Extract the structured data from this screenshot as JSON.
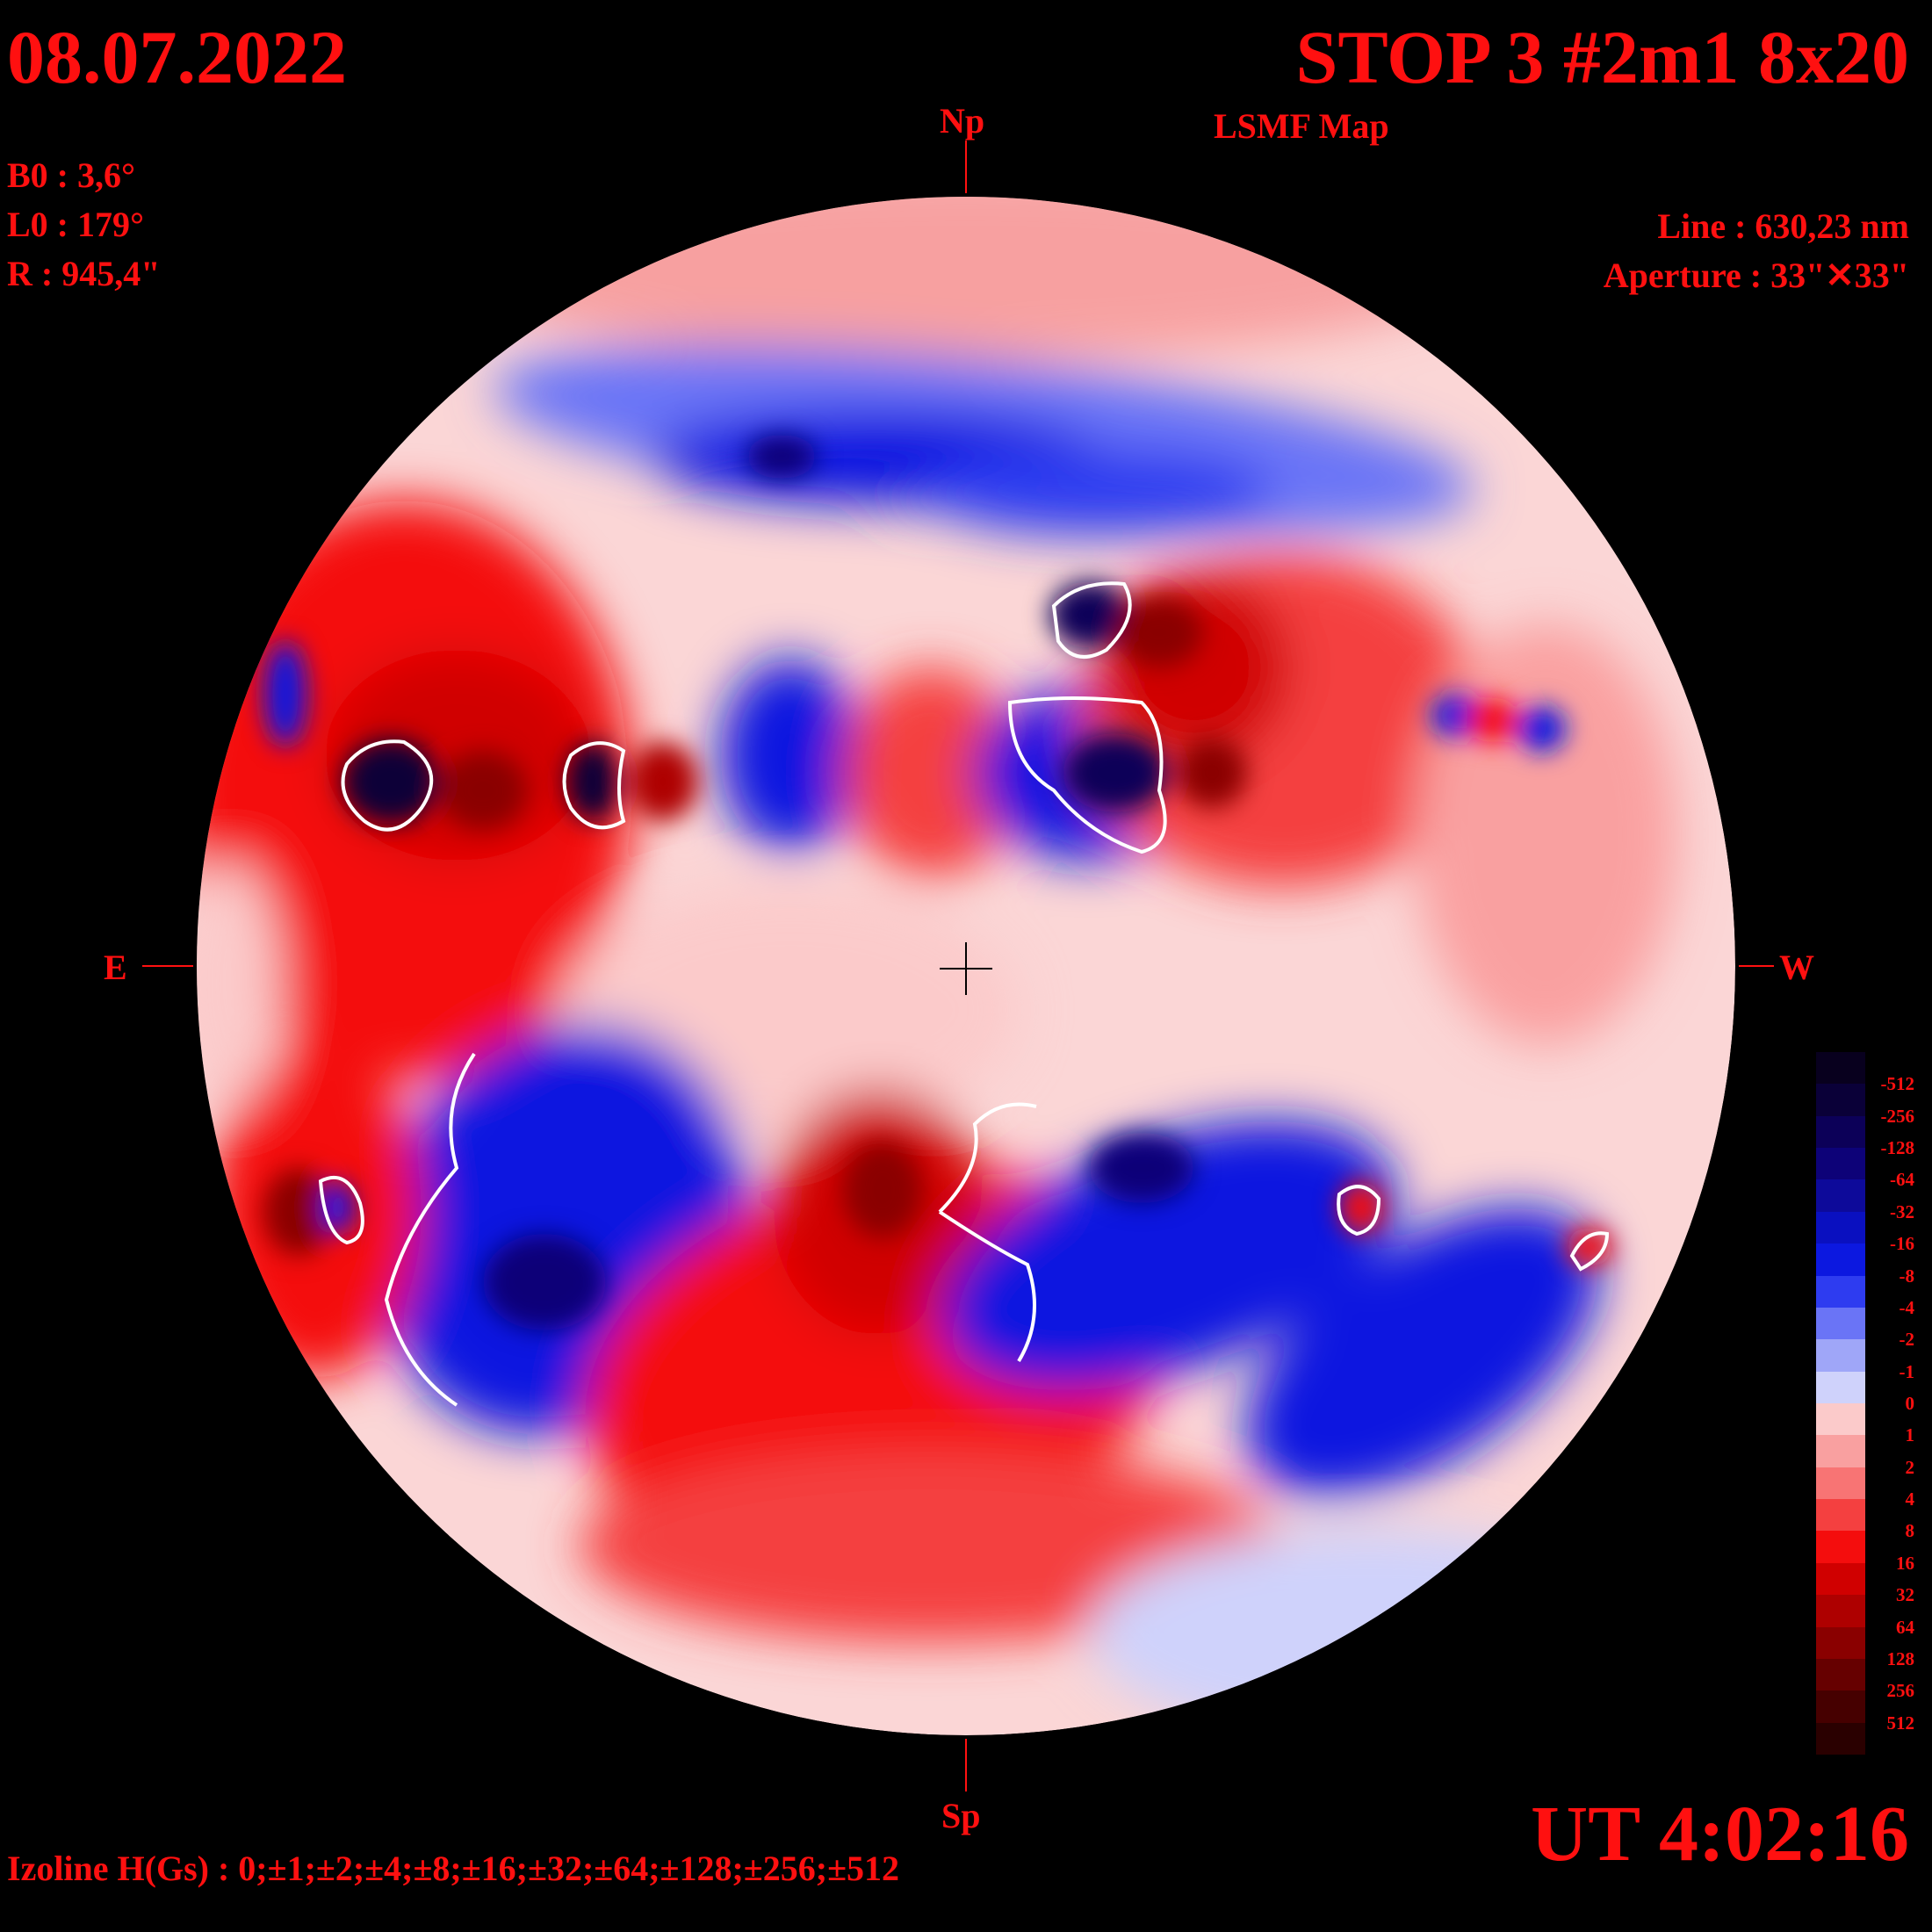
{
  "header": {
    "date": "08.07.2022",
    "title": "STOP 3 #2m1 8x20",
    "subtitle": "LSMF  Map"
  },
  "params": {
    "b0": "B0 : 3,6°",
    "l0": "L0 : 179°",
    "r": "R  : 945,4\""
  },
  "instrument": {
    "line": "Line :  630,23 nm",
    "aperture": "Aperture : 33\"✕33\""
  },
  "compass": {
    "north": "Np",
    "south": "Sp",
    "east": "E",
    "west": "W"
  },
  "time": "UT 4:02:16",
  "izoline": "Izoline H(Gs) : 0;±1;±2;±4;±8;±16;±32;±64;±128;±256;±512",
  "colors": {
    "background": "#000000",
    "text": "#ff1010",
    "contour": "#ffffff"
  },
  "scale": {
    "levels": [
      "-512",
      "-256",
      "-128",
      "-64",
      "-32",
      "-16",
      "-8",
      "-4",
      "-2",
      "-1",
      "0",
      "1",
      "2",
      "4",
      "8",
      "16",
      "32",
      "64",
      "128",
      "256",
      "512"
    ],
    "swatches": [
      "#08001e",
      "#0a0038",
      "#0c0058",
      "#0d0278",
      "#0d0a9a",
      "#0a10c0",
      "#0c18e0",
      "#2e3cf0",
      "#6a74f6",
      "#9fa6f8",
      "#cfd2fb",
      "#fbcaca",
      "#f9a0a0",
      "#f87474",
      "#f44040",
      "#f40d0d",
      "#d00000",
      "#ae0000",
      "#8a0000",
      "#660000",
      "#460000",
      "#2a0000"
    ]
  }
}
